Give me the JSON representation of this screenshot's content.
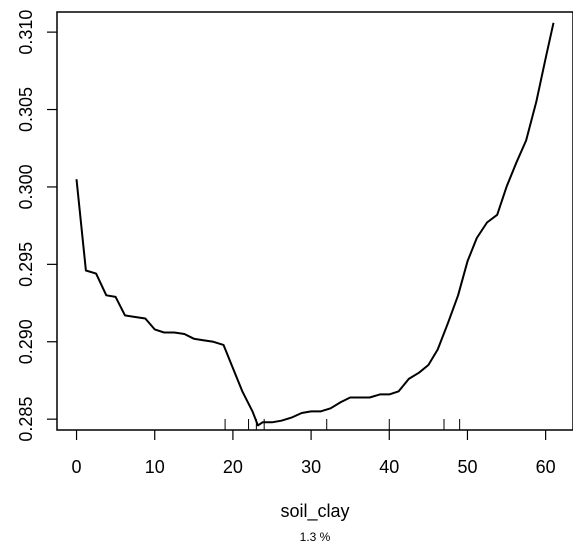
{
  "chart_data": {
    "type": "line",
    "title": "",
    "xlabel": "soil_clay",
    "sublabel": "1.3 %",
    "ylabel": "",
    "xlim": [
      -2.5,
      63.5
    ],
    "ylim": [
      0.2843,
      0.3113
    ],
    "x_ticks": [
      0,
      10,
      20,
      30,
      40,
      50,
      60
    ],
    "x_tick_labels": [
      "0",
      "10",
      "20",
      "30",
      "40",
      "50",
      "60"
    ],
    "y_ticks": [
      0.285,
      0.29,
      0.295,
      0.3,
      0.305,
      0.31
    ],
    "y_tick_labels": [
      "0.285",
      "0.290",
      "0.295",
      "0.300",
      "0.305",
      "0.310"
    ],
    "grid": false,
    "series": [
      {
        "x": [
          0,
          1.2,
          2.5,
          3.8,
          5,
          6.2,
          7.5,
          8.8,
          10,
          11.2,
          12.5,
          13.8,
          15,
          16.2,
          17.5,
          18.8,
          20,
          21.2,
          22.5,
          23.2,
          23.8,
          25,
          26.2,
          27.5,
          28.8,
          30,
          31.2,
          32.5,
          33.8,
          35,
          36.2,
          37.5,
          38.8,
          40,
          41.2,
          42.5,
          43.8,
          45,
          46.2,
          47.5,
          48.8,
          50,
          51.2,
          52.5,
          53.8,
          55,
          56.2,
          57.5,
          58.8,
          60,
          61
        ],
        "y": [
          0.3005,
          0.2946,
          0.2944,
          0.293,
          0.2929,
          0.2917,
          0.2916,
          0.2915,
          0.2908,
          0.2906,
          0.2906,
          0.2905,
          0.2902,
          0.2901,
          0.29,
          0.2898,
          0.2883,
          0.2868,
          0.2855,
          0.2846,
          0.2848,
          0.2848,
          0.2849,
          0.2851,
          0.2854,
          0.2855,
          0.2855,
          0.2857,
          0.2861,
          0.2864,
          0.2864,
          0.2864,
          0.2866,
          0.2866,
          0.2868,
          0.2876,
          0.288,
          0.2885,
          0.2895,
          0.2912,
          0.293,
          0.2952,
          0.2967,
          0.2977,
          0.2982,
          0.3,
          0.3015,
          0.303,
          0.3055,
          0.3083,
          0.3106
        ]
      }
    ],
    "rug": [
      19,
      22,
      23,
      24,
      32,
      40,
      47,
      49
    ]
  }
}
